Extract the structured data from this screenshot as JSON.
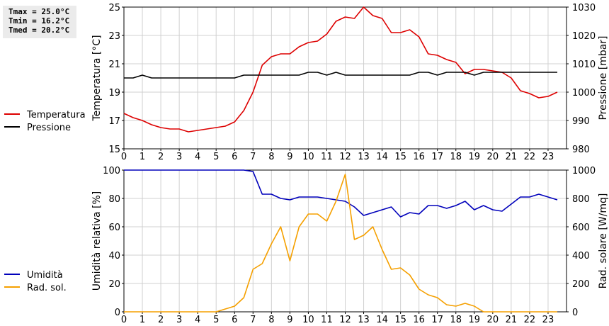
{
  "stats": {
    "tmax": "Tmax = 25.0°C",
    "tmin": "Tmin = 16.2°C",
    "tmed": "Tmed = 20.2°C"
  },
  "colors": {
    "temperature": "#dd0000",
    "pressure": "#000000",
    "humidity": "#0000bb",
    "radiation": "#f5a000",
    "grid": "#d0d0d0"
  },
  "chart_data": [
    {
      "type": "line",
      "x_ticks": [
        "0",
        "1",
        "2",
        "3",
        "4",
        "5",
        "6",
        "7",
        "8",
        "9",
        "10",
        "11",
        "12",
        "13",
        "14",
        "15",
        "16",
        "17",
        "18",
        "19",
        "20",
        "21",
        "22",
        "23"
      ],
      "xlim": [
        0,
        24
      ],
      "ylabel": "Temperatura [°C]",
      "ylim": [
        15,
        25
      ],
      "y_ticks": [
        "15",
        "17",
        "19",
        "21",
        "23",
        "25"
      ],
      "y2label": "Pressione [mbar]",
      "y2lim": [
        980,
        1030
      ],
      "y2_ticks": [
        "980",
        "990",
        "1000",
        "1010",
        "1020",
        "1030"
      ],
      "grid": true,
      "legend_position": "left",
      "series": [
        {
          "name": "Temperatura",
          "axis": "left",
          "color_key": "temperature",
          "x": [
            0,
            0.5,
            1,
            1.5,
            2,
            2.5,
            3,
            3.5,
            4,
            4.5,
            5,
            5.5,
            6,
            6.5,
            7,
            7.5,
            8,
            8.5,
            9,
            9.5,
            10,
            10.5,
            11,
            11.5,
            12,
            12.5,
            13,
            13.5,
            14,
            14.5,
            15,
            15.5,
            16,
            16.5,
            17,
            17.5,
            18,
            18.5,
            19,
            19.5,
            20,
            20.5,
            21,
            21.5,
            22,
            22.5,
            23,
            23.5
          ],
          "values": [
            17.5,
            17.2,
            17.0,
            16.7,
            16.5,
            16.4,
            16.4,
            16.2,
            16.3,
            16.4,
            16.5,
            16.6,
            16.9,
            17.7,
            19.0,
            20.9,
            21.5,
            21.7,
            21.7,
            22.2,
            22.5,
            22.6,
            23.1,
            24.0,
            24.3,
            24.2,
            25.0,
            24.4,
            24.2,
            23.2,
            23.2,
            23.4,
            22.9,
            21.7,
            21.6,
            21.3,
            21.1,
            20.3,
            20.6,
            20.6,
            20.5,
            20.4,
            20.0,
            19.1,
            18.9,
            18.6,
            18.7,
            19.0
          ]
        },
        {
          "name": "Pressione",
          "axis": "right",
          "color_key": "pressure",
          "x": [
            0,
            0.5,
            1,
            1.5,
            2,
            2.5,
            3,
            3.5,
            4,
            4.5,
            5,
            5.5,
            6,
            6.5,
            7,
            7.5,
            8,
            8.5,
            9,
            9.5,
            10,
            10.5,
            11,
            11.5,
            12,
            12.5,
            13,
            13.5,
            14,
            14.5,
            15,
            15.5,
            16,
            16.5,
            17,
            17.5,
            18,
            18.5,
            19,
            19.5,
            20,
            20.5,
            21,
            21.5,
            22,
            22.5,
            23,
            23.5
          ],
          "values": [
            1005,
            1005,
            1006,
            1005,
            1005,
            1005,
            1005,
            1005,
            1005,
            1005,
            1005,
            1005,
            1005,
            1006,
            1006,
            1006,
            1006,
            1006,
            1006,
            1006,
            1007,
            1007,
            1006,
            1007,
            1006,
            1006,
            1006,
            1006,
            1006,
            1006,
            1006,
            1006,
            1007,
            1007,
            1006,
            1007,
            1007,
            1007,
            1006,
            1007,
            1007,
            1007,
            1007,
            1007,
            1007,
            1007,
            1007,
            1007
          ]
        }
      ]
    },
    {
      "type": "line",
      "x_ticks": [
        "0",
        "1",
        "2",
        "3",
        "4",
        "5",
        "6",
        "7",
        "8",
        "9",
        "10",
        "11",
        "12",
        "13",
        "14",
        "15",
        "16",
        "17",
        "18",
        "19",
        "20",
        "21",
        "22",
        "23"
      ],
      "xlim": [
        0,
        24
      ],
      "ylabel": "Umidità relativa [%]",
      "ylim": [
        0,
        100
      ],
      "y_ticks": [
        "0",
        "20",
        "40",
        "60",
        "80",
        "100"
      ],
      "y2label": "Rad. solare [W/mq]",
      "y2lim": [
        0,
        1000
      ],
      "y2_ticks": [
        "0",
        "200",
        "400",
        "600",
        "800",
        "1000"
      ],
      "grid": true,
      "legend_position": "left",
      "series": [
        {
          "name": "Umidità",
          "axis": "left",
          "color_key": "humidity",
          "x": [
            0,
            0.5,
            1,
            1.5,
            2,
            2.5,
            3,
            3.5,
            4,
            4.5,
            5,
            5.5,
            6,
            6.5,
            7,
            7.5,
            8,
            8.5,
            9,
            9.5,
            10,
            10.5,
            11,
            11.5,
            12,
            12.5,
            13,
            13.5,
            14,
            14.5,
            15,
            15.5,
            16,
            16.5,
            17,
            17.5,
            18,
            18.5,
            19,
            19.5,
            20,
            20.5,
            21,
            21.5,
            22,
            22.5,
            23,
            23.5
          ],
          "values": [
            100,
            100,
            100,
            100,
            100,
            100,
            100,
            100,
            100,
            100,
            100,
            100,
            100,
            100,
            99,
            83,
            83,
            80,
            79,
            81,
            81,
            81,
            80,
            79,
            78,
            74,
            68,
            70,
            72,
            74,
            67,
            70,
            69,
            75,
            75,
            73,
            75,
            78,
            72,
            75,
            72,
            71,
            76,
            81,
            81,
            83,
            81,
            79
          ]
        },
        {
          "name": "Rad. sol.",
          "axis": "right",
          "color_key": "radiation",
          "x": [
            0,
            0.5,
            1,
            1.5,
            2,
            2.5,
            3,
            3.5,
            4,
            4.5,
            5,
            5.5,
            6,
            6.5,
            7,
            7.5,
            8,
            8.5,
            9,
            9.5,
            10,
            10.5,
            11,
            11.5,
            12,
            12.5,
            13,
            13.5,
            14,
            14.5,
            15,
            15.5,
            16,
            16.5,
            17,
            17.5,
            18,
            18.5,
            19,
            19.5,
            20,
            20.5,
            21,
            21.5,
            22,
            22.5,
            23,
            23.5
          ],
          "values": [
            0,
            0,
            0,
            0,
            0,
            0,
            0,
            0,
            0,
            0,
            0,
            20,
            40,
            100,
            300,
            340,
            480,
            600,
            360,
            600,
            690,
            690,
            640,
            780,
            970,
            510,
            540,
            600,
            440,
            300,
            310,
            260,
            160,
            120,
            100,
            50,
            40,
            60,
            40,
            0,
            0,
            0,
            0,
            0,
            0,
            0,
            0,
            0
          ]
        }
      ]
    }
  ]
}
